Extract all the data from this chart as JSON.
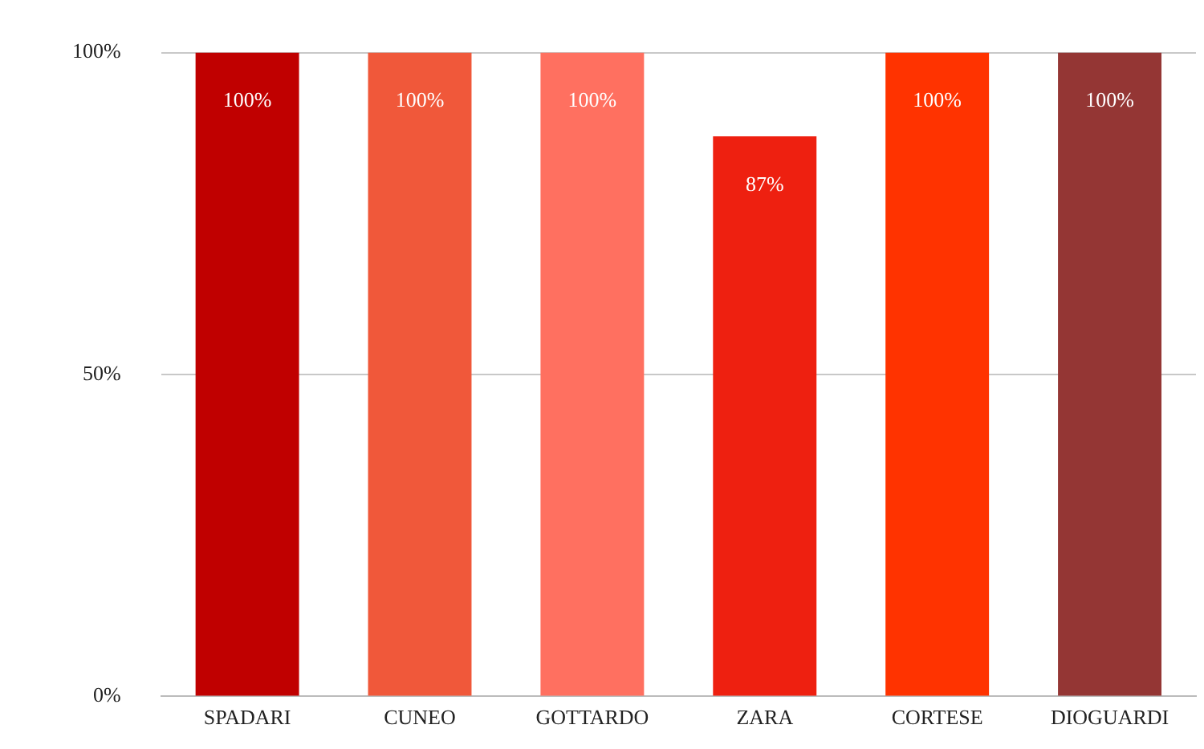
{
  "chart_data": {
    "type": "bar",
    "categories": [
      "SPADARI",
      "CUNEO",
      "GOTTARDO",
      "ZARA",
      "CORTESE",
      "DIOGUARDI"
    ],
    "values": [
      100,
      100,
      100,
      87,
      100,
      100
    ],
    "colors": [
      "#c00000",
      "#f0583a",
      "#ff7060",
      "#ee2010",
      "#ff3300",
      "#943634"
    ],
    "value_labels": [
      "100%",
      "100%",
      "100%",
      "87%",
      "100%",
      "100%"
    ],
    "ylim": [
      0,
      100
    ],
    "yticks": [
      {
        "value": 0,
        "label": "0%"
      },
      {
        "value": 50,
        "label": "50%"
      },
      {
        "value": 100,
        "label": "100%"
      }
    ],
    "grid": "y",
    "legend": false
  }
}
